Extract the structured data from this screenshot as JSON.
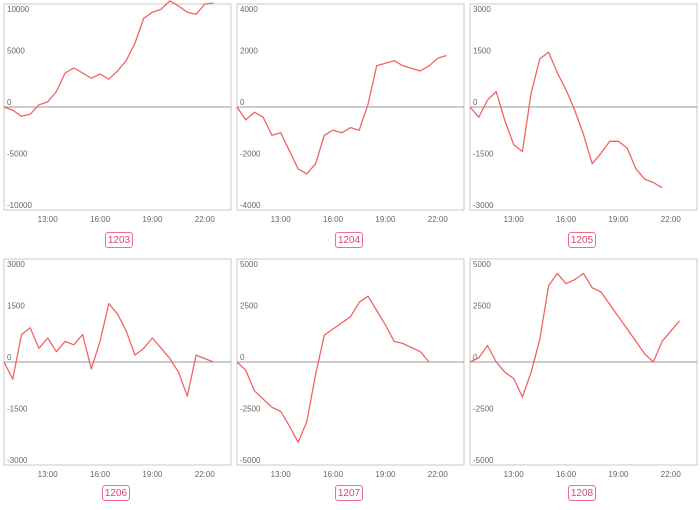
{
  "charts": [
    {
      "code": "1203",
      "y_ticks": [
        {
          "v": 10000,
          "label": "10000"
        },
        {
          "v": 5000,
          "label": "5000"
        },
        {
          "v": 0,
          "label": "0"
        },
        {
          "v": -5000,
          "label": "-5000"
        },
        {
          "v": -10000,
          "label": "-10000"
        }
      ]
    },
    {
      "code": "1204",
      "y_ticks": [
        {
          "v": 4000,
          "label": "4000"
        },
        {
          "v": 2000,
          "label": "2000"
        },
        {
          "v": 0,
          "label": "0"
        },
        {
          "v": -2000,
          "label": "-2000"
        },
        {
          "v": -4000,
          "label": "-4000"
        }
      ]
    },
    {
      "code": "1205",
      "y_ticks": [
        {
          "v": 3000,
          "label": "3000"
        },
        {
          "v": 1500,
          "label": "1500"
        },
        {
          "v": 0,
          "label": "0"
        },
        {
          "v": -1500,
          "label": "-1500"
        },
        {
          "v": -3000,
          "label": "-3000"
        }
      ]
    },
    {
      "code": "1206",
      "y_ticks": [
        {
          "v": 3000,
          "label": "3000"
        },
        {
          "v": 1500,
          "label": "1500"
        },
        {
          "v": 0,
          "label": "0"
        },
        {
          "v": -1500,
          "label": "-1500"
        },
        {
          "v": -3000,
          "label": "-3000"
        }
      ]
    },
    {
      "code": "1207",
      "y_ticks": [
        {
          "v": 5000,
          "label": "5000"
        },
        {
          "v": 2500,
          "label": "2500"
        },
        {
          "v": 0,
          "label": "0"
        },
        {
          "v": -2500,
          "label": "-2500"
        },
        {
          "v": -5000,
          "label": "-5000"
        }
      ]
    },
    {
      "code": "1208",
      "y_ticks": [
        {
          "v": 5000,
          "label": "5000"
        },
        {
          "v": 2500,
          "label": "2500"
        },
        {
          "v": 0,
          "label": "0"
        },
        {
          "v": -2500,
          "label": "-2500"
        },
        {
          "v": -5000,
          "label": "-5000"
        }
      ]
    }
  ],
  "chart_data": [
    {
      "type": "line",
      "code": "1203",
      "grid": false,
      "line_color": "#f26363",
      "x_ticks": [
        "13:00",
        "16:00",
        "19:00",
        "22:00"
      ],
      "ylim": [
        -10000,
        10000
      ],
      "series": [
        {
          "x": [
            10.5,
            11,
            11.5,
            12,
            12.5,
            13,
            13.5,
            14,
            14.5,
            15,
            15.5,
            16,
            16.5,
            17,
            17.5,
            18,
            18.5,
            19,
            19.5,
            20,
            20.5,
            21,
            21.5,
            22,
            22.5
          ],
          "values": [
            0,
            -300,
            -900,
            -700,
            200,
            500,
            1500,
            3300,
            3800,
            3300,
            2800,
            3200,
            2700,
            3500,
            4500,
            6200,
            8600,
            9200,
            9500,
            10300,
            9800,
            9200,
            9000,
            10000,
            10100
          ]
        }
      ]
    },
    {
      "type": "line",
      "code": "1204",
      "grid": false,
      "line_color": "#f26363",
      "x_ticks": [
        "13:00",
        "16:00",
        "19:00",
        "22:00"
      ],
      "ylim": [
        -4000,
        4000
      ],
      "series": [
        {
          "x": [
            10.5,
            11,
            11.5,
            12,
            12.5,
            13,
            13.5,
            14,
            14.5,
            15,
            15.5,
            16,
            16.5,
            17,
            17.5,
            18,
            18.5,
            19,
            19.5,
            20,
            20.5,
            21,
            21.5,
            22,
            22.5
          ],
          "values": [
            0,
            -500,
            -200,
            -400,
            -1100,
            -1000,
            -1700,
            -2400,
            -2600,
            -2200,
            -1100,
            -900,
            -1000,
            -800,
            -900,
            100,
            1600,
            1700,
            1800,
            1600,
            1500,
            1400,
            1600,
            1900,
            2000
          ]
        }
      ]
    },
    {
      "type": "line",
      "code": "1205",
      "grid": false,
      "line_color": "#f26363",
      "x_ticks": [
        "13:00",
        "16:00",
        "19:00",
        "22:00"
      ],
      "ylim": [
        -3000,
        3000
      ],
      "series": [
        {
          "x": [
            10.5,
            11,
            11.5,
            12,
            12.5,
            13,
            13.5,
            14,
            14.5,
            15,
            15.5,
            16,
            16.5,
            17,
            17.5,
            18,
            18.5,
            19,
            19.5,
            20,
            20.5,
            21,
            21.5
          ],
          "values": [
            0,
            -300,
            200,
            450,
            -400,
            -1100,
            -1300,
            400,
            1400,
            1600,
            1000,
            500,
            -100,
            -800,
            -1650,
            -1350,
            -1000,
            -1000,
            -1200,
            -1800,
            -2100,
            -2200,
            -2350
          ]
        }
      ]
    },
    {
      "type": "line",
      "code": "1206",
      "grid": false,
      "line_color": "#f26363",
      "x_ticks": [
        "13:00",
        "16:00",
        "19:00",
        "22:00"
      ],
      "ylim": [
        -3000,
        3000
      ],
      "series": [
        {
          "x": [
            10.5,
            11,
            11.5,
            12,
            12.5,
            13,
            13.5,
            14,
            14.5,
            15,
            15.5,
            16,
            16.5,
            17,
            17.5,
            18,
            18.5,
            19,
            19.5,
            20,
            20.5,
            21,
            21.5,
            22,
            22.5
          ],
          "values": [
            0,
            -500,
            800,
            1000,
            400,
            700,
            300,
            600,
            500,
            800,
            -200,
            600,
            1700,
            1400,
            900,
            200,
            400,
            700,
            400,
            100,
            -300,
            -1000,
            200,
            100,
            0
          ]
        }
      ]
    },
    {
      "type": "line",
      "code": "1207",
      "grid": false,
      "line_color": "#f26363",
      "x_ticks": [
        "13:00",
        "16:00",
        "19:00",
        "22:00"
      ],
      "ylim": [
        -5000,
        5000
      ],
      "series": [
        {
          "x": [
            10.5,
            11,
            11.5,
            12,
            12.5,
            13,
            13.5,
            14,
            14.5,
            15,
            15.5,
            16,
            16.5,
            17,
            17.5,
            18,
            18.5,
            19,
            19.5,
            20,
            20.5,
            21,
            21.5
          ],
          "values": [
            0,
            -400,
            -1400,
            -1800,
            -2200,
            -2400,
            -3100,
            -3900,
            -2900,
            -600,
            1300,
            1600,
            1900,
            2200,
            2900,
            3200,
            2500,
            1800,
            1000,
            900,
            700,
            500,
            0
          ]
        }
      ]
    },
    {
      "type": "line",
      "code": "1208",
      "grid": false,
      "line_color": "#f26363",
      "x_ticks": [
        "13:00",
        "16:00",
        "19:00",
        "22:00"
      ],
      "ylim": [
        -5000,
        5000
      ],
      "series": [
        {
          "x": [
            10.5,
            11,
            11.5,
            12,
            12.5,
            13,
            13.5,
            14,
            14.5,
            15,
            15.5,
            16,
            16.5,
            17,
            17.5,
            18,
            18.5,
            19,
            19.5,
            20,
            20.5,
            21,
            21.5,
            22,
            22.5
          ],
          "values": [
            0,
            200,
            800,
            0,
            -500,
            -800,
            -1700,
            -500,
            1100,
            3700,
            4300,
            3800,
            4000,
            4300,
            3600,
            3400,
            2800,
            2200,
            1600,
            1000,
            400,
            0,
            1000,
            1500,
            2000
          ]
        }
      ]
    }
  ]
}
